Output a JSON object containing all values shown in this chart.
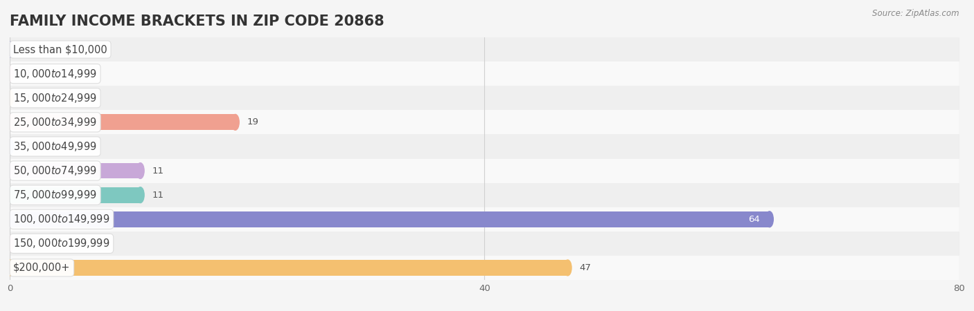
{
  "title": "FAMILY INCOME BRACKETS IN ZIP CODE 20868",
  "source": "Source: ZipAtlas.com",
  "categories": [
    "Less than $10,000",
    "$10,000 to $14,999",
    "$15,000 to $24,999",
    "$25,000 to $34,999",
    "$35,000 to $49,999",
    "$50,000 to $74,999",
    "$75,000 to $99,999",
    "$100,000 to $149,999",
    "$150,000 to $199,999",
    "$200,000+"
  ],
  "values": [
    0,
    0,
    0,
    19,
    0,
    11,
    11,
    64,
    0,
    47
  ],
  "bar_colors": [
    "#aaaad8",
    "#f4a0b8",
    "#f4c070",
    "#f0a090",
    "#a8c0e8",
    "#c8a8d8",
    "#7ec8c0",
    "#8888cc",
    "#f4a0b8",
    "#f4c070"
  ],
  "background_color": "#f5f5f5",
  "row_bg_even": "#efefef",
  "row_bg_odd": "#f9f9f9",
  "xlim": [
    0,
    80
  ],
  "xticks": [
    0,
    40,
    80
  ],
  "title_fontsize": 15,
  "label_fontsize": 10.5,
  "value_fontsize": 9.5,
  "bar_height": 0.65,
  "grid_color": "#d0d0d0"
}
